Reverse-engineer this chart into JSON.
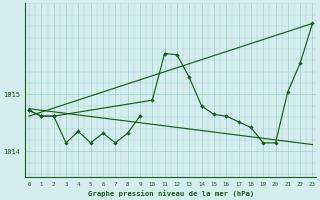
{
  "title": "Graphe pression niveau de la mer (hPa)",
  "background_color": "#d4eeed",
  "line_color": "#1a5c1a",
  "grid_color": "#9ecece",
  "x_labels": [
    "0",
    "1",
    "2",
    "3",
    "4",
    "5",
    "6",
    "7",
    "8",
    "9",
    "10",
    "11",
    "12",
    "13",
    "14",
    "15",
    "16",
    "17",
    "18",
    "19",
    "20",
    "21",
    "22",
    "23"
  ],
  "yticks": [
    1014,
    1015
  ],
  "ylim": [
    1013.55,
    1016.6
  ],
  "xlim": [
    -0.3,
    23.3
  ],
  "series_markers_jagged": [
    0,
    1014.72,
    1,
    1014.62,
    2,
    1014.62,
    3,
    1014.15,
    4,
    1014.35,
    5,
    1014.15,
    6,
    1014.32,
    7,
    1014.15,
    8,
    1014.32,
    9,
    1014.62
  ],
  "series_peak": [
    0,
    1014.72,
    1,
    1014.62,
    2,
    1014.62,
    10,
    1014.9,
    11,
    1015.72,
    12,
    1015.7,
    13,
    1015.3,
    14,
    1014.8,
    15,
    1014.65,
    16,
    1014.62,
    17,
    1014.52,
    18,
    1014.42,
    19,
    1014.15,
    20,
    1014.15,
    21,
    1015.05,
    22,
    1015.55,
    23,
    1016.25
  ],
  "series_uptrend": [
    0,
    1014.62,
    23,
    1016.25
  ],
  "series_downtrend": [
    0,
    1014.75,
    23,
    1014.25
  ],
  "series_markers2": [
    15,
    1014.65,
    16,
    1014.62,
    17,
    1014.47,
    18,
    1014.15,
    19,
    1014.15,
    20,
    1014.47,
    21,
    1015.05
  ]
}
